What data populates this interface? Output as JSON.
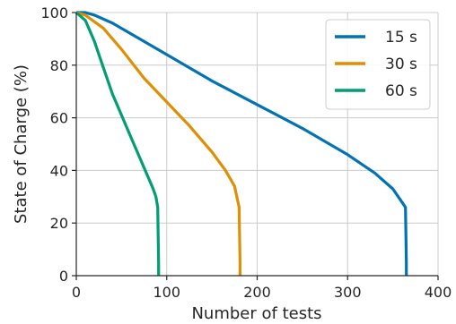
{
  "chart_data": {
    "type": "line",
    "title": "",
    "xlabel": "Number of tests",
    "ylabel": "State of Charge (%)",
    "xlim": [
      0,
      400
    ],
    "ylim": [
      0,
      100
    ],
    "xticks": [
      0,
      100,
      200,
      300,
      400
    ],
    "yticks": [
      0,
      20,
      40,
      60,
      80,
      100
    ],
    "grid": true,
    "legend": "top-right",
    "series": [
      {
        "name": "15 s",
        "color": "#0173b2",
        "x": [
          0,
          10,
          20,
          40,
          60,
          80,
          100,
          150,
          200,
          250,
          300,
          330,
          350,
          360,
          364,
          365,
          365
        ],
        "y": [
          100,
          100,
          99,
          96,
          92,
          88,
          84,
          74,
          65,
          56,
          46,
          39,
          33,
          28,
          26,
          5,
          0
        ]
      },
      {
        "name": "30 s",
        "color": "#de8f05",
        "x": [
          0,
          10,
          30,
          50,
          75,
          100,
          125,
          150,
          165,
          175,
          180,
          181,
          181
        ],
        "y": [
          100,
          99,
          94,
          86,
          75,
          66,
          57,
          47,
          40,
          34,
          26,
          5,
          0
        ]
      },
      {
        "name": "60 s",
        "color": "#029e73",
        "x": [
          0,
          10,
          20,
          30,
          40,
          50,
          60,
          70,
          80,
          85,
          88,
          90,
          91,
          91
        ],
        "y": [
          100,
          97,
          89,
          79,
          69,
          61,
          53,
          45,
          37,
          33,
          30,
          26,
          5,
          0
        ]
      }
    ]
  }
}
